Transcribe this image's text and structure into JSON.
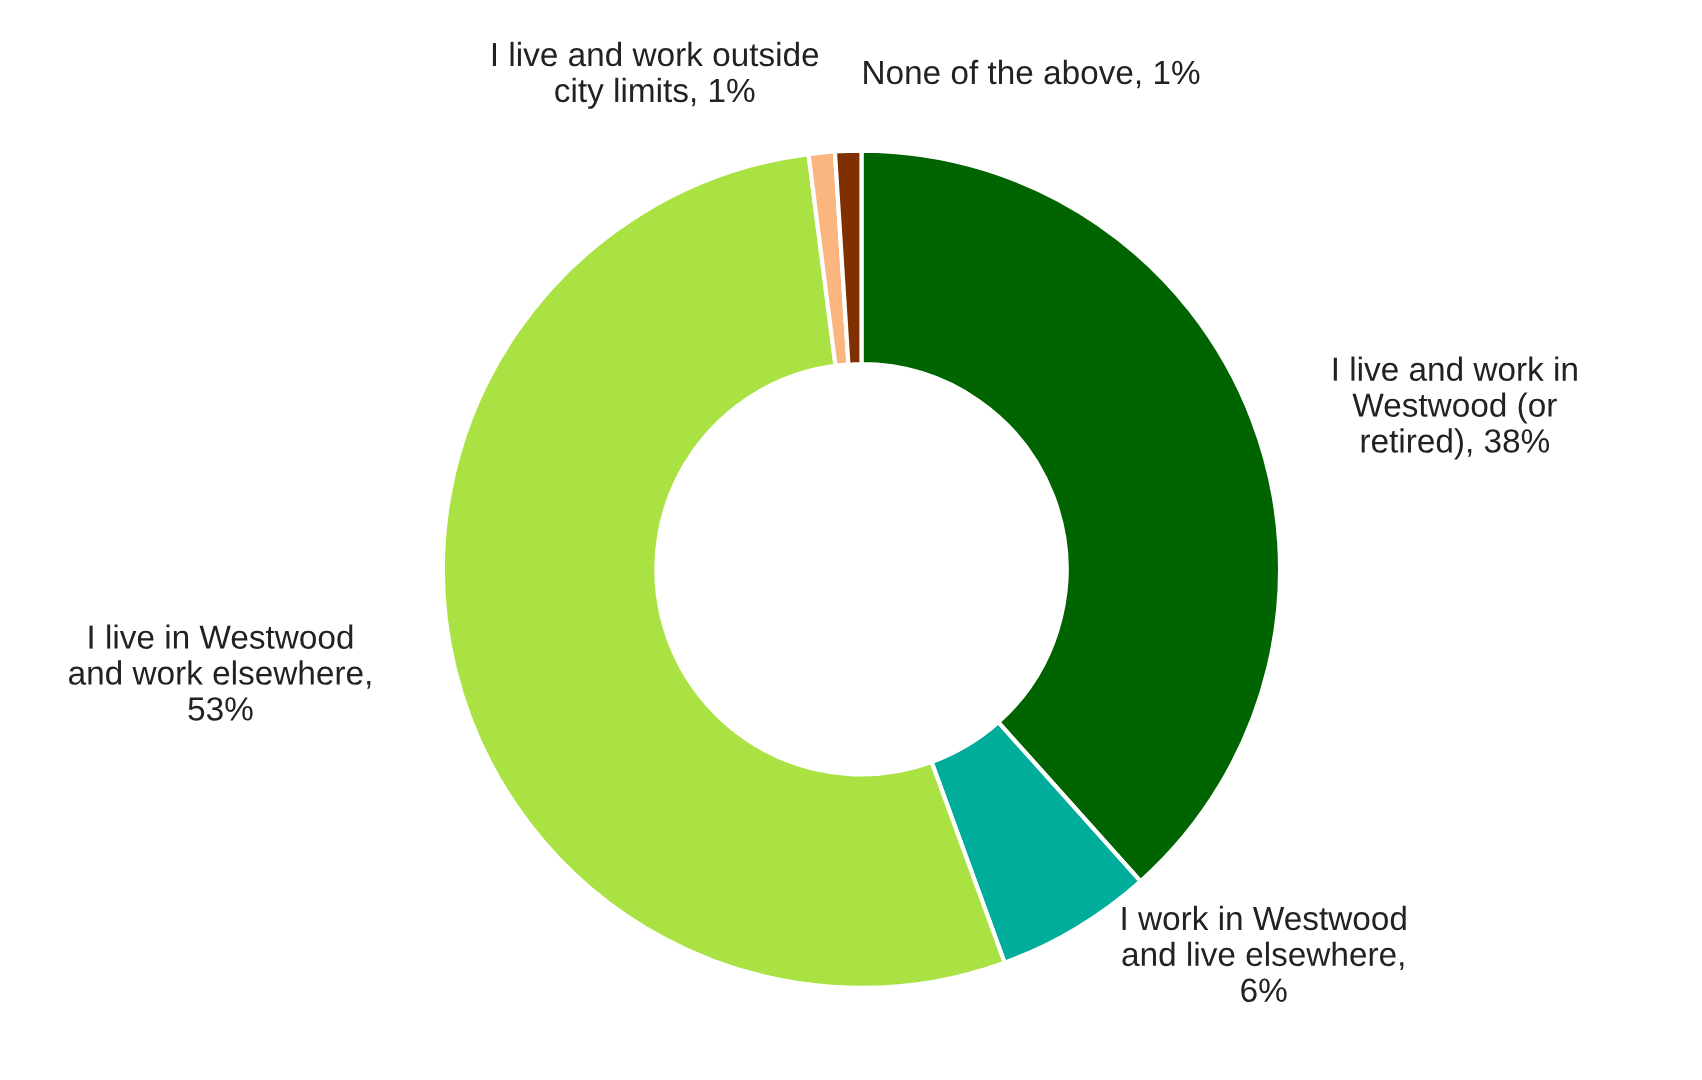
{
  "chart_data": {
    "type": "donut",
    "categories": [
      "I live and work in Westwood (or retired), 38%",
      "I work in Westwood and live elsewhere, 6%",
      "I live in Westwood and work elsewhere, 53%",
      "I live and work outside city limits, 1%",
      "None of the above, 1%"
    ],
    "values": [
      38,
      6,
      53,
      1,
      1
    ],
    "colors": [
      "#006400",
      "#00ad9a",
      "#a9e242",
      "#fbb57f",
      "#7f3000"
    ],
    "legend": false
  }
}
